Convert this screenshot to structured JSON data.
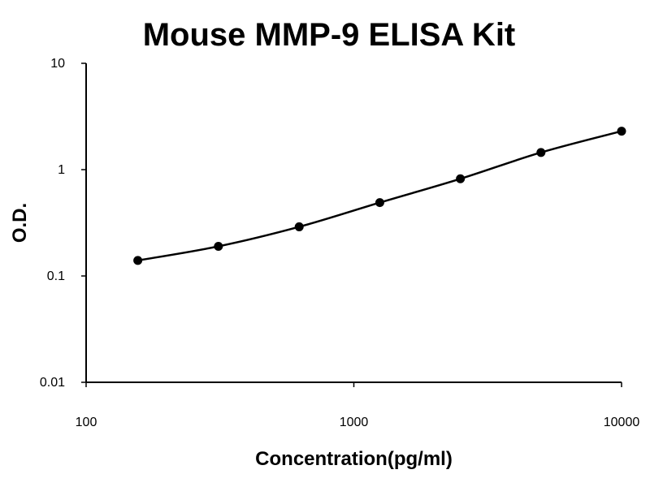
{
  "chart_data": {
    "type": "scatter",
    "title": "Mouse MMP-9 ELISA Kit",
    "xlabel": "Concentration(pg/ml)",
    "ylabel": "O.D.",
    "x_scale": "log",
    "y_scale": "log",
    "xlim": [
      100,
      10000
    ],
    "ylim": [
      0.01,
      10
    ],
    "x_ticks": [
      "100",
      "1000",
      "10000"
    ],
    "y_ticks": [
      "0.01",
      "0.1",
      "1",
      "10"
    ],
    "grid": false,
    "legend": "none",
    "series": [
      {
        "x": [
          156,
          312,
          625,
          1250,
          2500,
          5000,
          10000
        ],
        "y": [
          0.14,
          0.19,
          0.29,
          0.49,
          0.82,
          1.45,
          2.3
        ]
      }
    ],
    "fit_line": true,
    "colors": {
      "marker": "#000000",
      "line": "#000000"
    }
  }
}
